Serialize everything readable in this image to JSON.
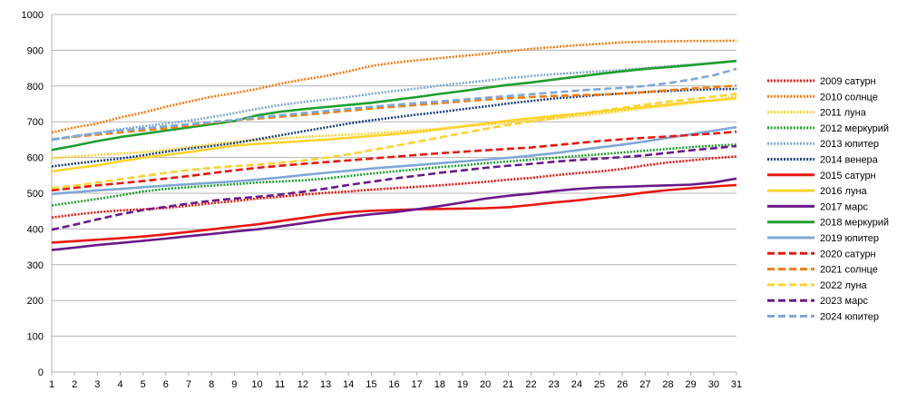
{
  "chart_data": {
    "type": "line",
    "title": "",
    "xlabel": "",
    "ylabel": "",
    "x": [
      1,
      2,
      3,
      4,
      5,
      6,
      7,
      8,
      9,
      10,
      11,
      12,
      13,
      14,
      15,
      16,
      17,
      18,
      19,
      20,
      21,
      22,
      23,
      24,
      25,
      26,
      27,
      28,
      29,
      30,
      31
    ],
    "ylim": [
      0,
      1000
    ],
    "yticks": [
      0,
      100,
      200,
      300,
      400,
      500,
      600,
      700,
      800,
      900,
      1000
    ],
    "grid": "horizontal",
    "legend_position": "right",
    "series": [
      {
        "name": "2009 сатурн",
        "color": "#e8180f",
        "style": "dotted",
        "values": [
          432,
          440,
          447,
          452,
          455,
          459,
          465,
          472,
          478,
          485,
          490,
          496,
          501,
          505,
          510,
          514,
          518,
          522,
          527,
          532,
          538,
          543,
          550,
          556,
          561,
          568,
          578,
          586,
          592,
          598,
          603
        ]
      },
      {
        "name": "2010 солнце",
        "color": "#f37c0f",
        "style": "dotted",
        "values": [
          670,
          684,
          695,
          712,
          726,
          742,
          756,
          770,
          780,
          792,
          806,
          818,
          828,
          841,
          856,
          865,
          872,
          878,
          884,
          890,
          897,
          904,
          909,
          914,
          918,
          922,
          924,
          925,
          926,
          926,
          927
        ]
      },
      {
        "name": "2011 луна",
        "color": "#fcd32f",
        "style": "dotted",
        "values": [
          598,
          603,
          607,
          611,
          615,
          621,
          629,
          637,
          644,
          649,
          653,
          657,
          661,
          664,
          667,
          671,
          676,
          681,
          687,
          692,
          697,
          703,
          709,
          716,
          722,
          730,
          738,
          745,
          752,
          760,
          771
        ]
      },
      {
        "name": "2012 меркурий",
        "color": "#1e9f2e",
        "style": "dotted",
        "values": [
          466,
          475,
          484,
          494,
          505,
          512,
          517,
          521,
          525,
          530,
          533,
          536,
          541,
          548,
          555,
          561,
          567,
          573,
          578,
          584,
          589,
          594,
          599,
          604,
          609,
          614,
          619,
          624,
          629,
          633,
          636
        ]
      },
      {
        "name": "2013 юпитер",
        "color": "#7fa8d6",
        "style": "dotted",
        "values": [
          649,
          659,
          669,
          679,
          687,
          695,
          703,
          713,
          724,
          736,
          747,
          755,
          762,
          769,
          778,
          786,
          793,
          801,
          808,
          815,
          822,
          828,
          833,
          837,
          841,
          845,
          850,
          855,
          860,
          865,
          870
        ]
      },
      {
        "name": "2014 венера",
        "color": "#1c3f7a",
        "style": "dotted",
        "values": [
          575,
          583,
          590,
          597,
          606,
          616,
          625,
          632,
          640,
          651,
          662,
          673,
          684,
          695,
          704,
          712,
          720,
          727,
          735,
          743,
          751,
          758,
          765,
          770,
          775,
          779,
          783,
          786,
          789,
          791,
          792
        ]
      },
      {
        "name": "2015 сатурн",
        "color": "#e8180f",
        "style": "solid",
        "values": [
          362,
          366,
          370,
          374,
          379,
          385,
          392,
          399,
          406,
          413,
          422,
          431,
          440,
          447,
          451,
          453,
          455,
          456,
          457,
          458,
          461,
          467,
          474,
          480,
          487,
          494,
          502,
          509,
          514,
          519,
          523
        ]
      },
      {
        "name": "2016 луна",
        "color": "#fcd32f",
        "style": "solid",
        "values": [
          561,
          570,
          578,
          589,
          599,
          607,
          615,
          624,
          633,
          638,
          642,
          646,
          650,
          655,
          660,
          665,
          671,
          679,
          687,
          695,
          703,
          710,
          716,
          722,
          728,
          735,
          741,
          748,
          755,
          760,
          765
        ]
      },
      {
        "name": "2017 марс",
        "color": "#6a1a8a",
        "style": "solid",
        "values": [
          341,
          348,
          355,
          361,
          367,
          373,
          380,
          386,
          393,
          399,
          407,
          416,
          425,
          434,
          441,
          447,
          455,
          464,
          474,
          485,
          493,
          499,
          506,
          512,
          516,
          518,
          520,
          522,
          524,
          530,
          541
        ]
      },
      {
        "name": "2018 меркурий",
        "color": "#1e9f2e",
        "style": "solid",
        "values": [
          621,
          633,
          646,
          657,
          666,
          675,
          684,
          693,
          702,
          718,
          728,
          735,
          741,
          747,
          753,
          761,
          769,
          778,
          786,
          795,
          803,
          810,
          818,
          826,
          834,
          841,
          848,
          853,
          858,
          864,
          870
        ]
      },
      {
        "name": "2019 юпитер",
        "color": "#7fa8d6",
        "style": "solid",
        "values": [
          498,
          503,
          508,
          512,
          517,
          521,
          525,
          529,
          533,
          538,
          544,
          551,
          557,
          563,
          569,
          574,
          579,
          584,
          589,
          594,
          599,
          605,
          612,
          620,
          628,
          636,
          645,
          655,
          665,
          675,
          685
        ]
      },
      {
        "name": "2020 сатурн",
        "color": "#e8180f",
        "style": "dashed",
        "values": [
          508,
          515,
          522,
          528,
          534,
          541,
          548,
          556,
          564,
          571,
          577,
          582,
          587,
          592,
          597,
          602,
          607,
          612,
          616,
          620,
          624,
          628,
          634,
          640,
          646,
          651,
          655,
          659,
          663,
          667,
          672
        ]
      },
      {
        "name": "2021 солнце",
        "color": "#f37c0f",
        "style": "dashed",
        "values": [
          651,
          658,
          664,
          670,
          676,
          682,
          689,
          697,
          704,
          709,
          714,
          719,
          725,
          731,
          737,
          742,
          747,
          752,
          757,
          762,
          766,
          769,
          772,
          774,
          776,
          779,
          783,
          788,
          793,
          797,
          801
        ]
      },
      {
        "name": "2022 луна",
        "color": "#fcd32f",
        "style": "dashed",
        "values": [
          514,
          521,
          530,
          539,
          548,
          557,
          565,
          571,
          576,
          580,
          585,
          591,
          599,
          609,
          620,
          632,
          644,
          656,
          668,
          680,
          691,
          701,
          711,
          721,
          730,
          739,
          748,
          756,
          763,
          770,
          778
        ]
      },
      {
        "name": "2023 марс",
        "color": "#6a1a8a",
        "style": "dashed",
        "values": [
          398,
          412,
          427,
          441,
          453,
          462,
          471,
          479,
          485,
          490,
          496,
          504,
          513,
          523,
          532,
          541,
          549,
          557,
          564,
          571,
          577,
          582,
          588,
          593,
          597,
          601,
          606,
          613,
          620,
          626,
          632
        ]
      },
      {
        "name": "2024 юпитер",
        "color": "#7fa8d6",
        "style": "dashed",
        "values": [
          650,
          660,
          668,
          675,
          681,
          687,
          693,
          699,
          705,
          712,
          718,
          724,
          730,
          736,
          742,
          747,
          752,
          757,
          762,
          767,
          772,
          777,
          782,
          787,
          791,
          795,
          800,
          808,
          818,
          830,
          848
        ]
      }
    ]
  }
}
